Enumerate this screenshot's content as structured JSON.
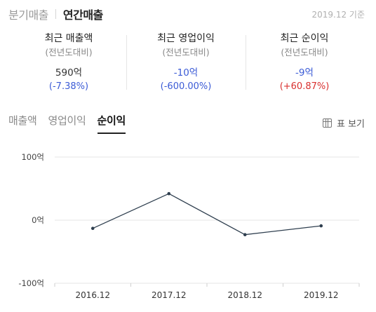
{
  "top_tabs": {
    "quarterly": "분기매출",
    "annual": "연간매출"
  },
  "as_of": "2019.12 기준",
  "stats": [
    {
      "title": "최근 매출액",
      "sub": "(전년도대비)",
      "value": "590억",
      "change": "(-7.38%)",
      "change_color": "#3b5bd6"
    },
    {
      "title": "최근 영업이익",
      "sub": "(전년도대비)",
      "value": "-10억",
      "change": "(-600.00%)",
      "change_color": "#3b5bd6"
    },
    {
      "title": "최근 순이익",
      "sub": "(전년도대비)",
      "value": "-9억",
      "change": "(+60.87%)",
      "change_color": "#d9302f"
    }
  ],
  "sub_tabs": [
    {
      "label": "매출액",
      "active": false
    },
    {
      "label": "영업이익",
      "active": false
    },
    {
      "label": "순이익",
      "active": true
    }
  ],
  "table_view_label": "표 보기",
  "chart_data": {
    "type": "line",
    "categories": [
      "2016.12",
      "2017.12",
      "2018.12",
      "2019.12"
    ],
    "series": [
      {
        "values": [
          -13,
          42,
          -23,
          -9
        ]
      }
    ],
    "y_ticks": [
      "100억",
      "0억",
      "-100억"
    ],
    "ylim": [
      -100,
      100
    ],
    "grid": true,
    "line_color": "#2f3f4f"
  }
}
